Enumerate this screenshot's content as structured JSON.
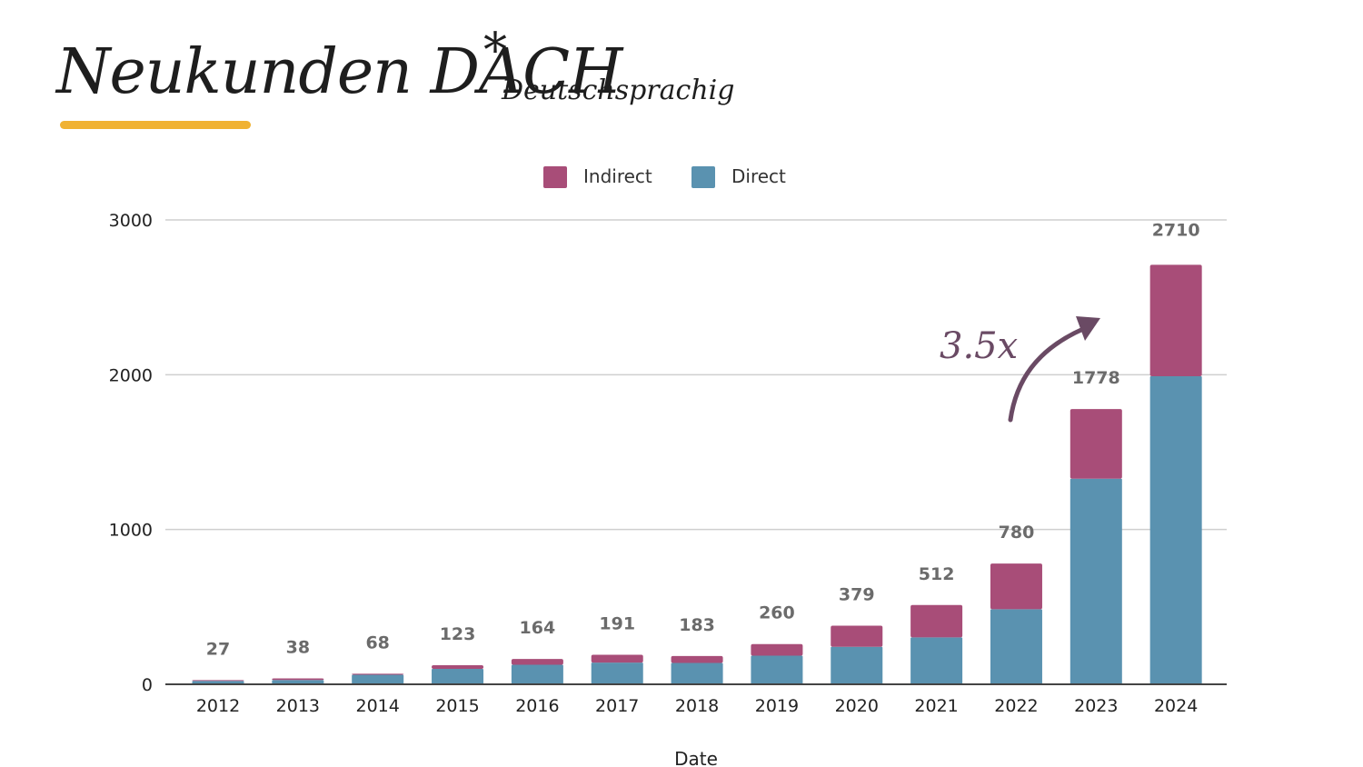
{
  "header": {
    "title": "Neukunden DACH",
    "title_mark": "*",
    "subtitle": "Deutschsprachig"
  },
  "colors": {
    "indirect": "#a84d78",
    "direct": "#5a92b0",
    "underline": "#f0b232",
    "annotation": "#6a4a64"
  },
  "chart_data": {
    "type": "bar",
    "stacked": true,
    "categories": [
      "2012",
      "2013",
      "2014",
      "2015",
      "2016",
      "2017",
      "2018",
      "2019",
      "2020",
      "2021",
      "2022",
      "2023",
      "2024"
    ],
    "series": [
      {
        "name": "Direct",
        "values": [
          22,
          28,
          62,
          100,
          126,
          140,
          138,
          185,
          242,
          303,
          485,
          1328,
          1990
        ]
      },
      {
        "name": "Indirect",
        "values": [
          5,
          10,
          6,
          23,
          38,
          51,
          45,
          75,
          137,
          209,
          295,
          450,
          720
        ]
      }
    ],
    "totals": [
      27,
      38,
      68,
      123,
      164,
      191,
      183,
      260,
      379,
      512,
      780,
      1778,
      2710
    ],
    "xlabel": "Date",
    "ylabel": "",
    "ylim": [
      0,
      3000
    ],
    "yticks": [
      0,
      1000,
      2000,
      3000
    ],
    "grid": true,
    "legend": "top-center",
    "annotation": "3.5x"
  }
}
